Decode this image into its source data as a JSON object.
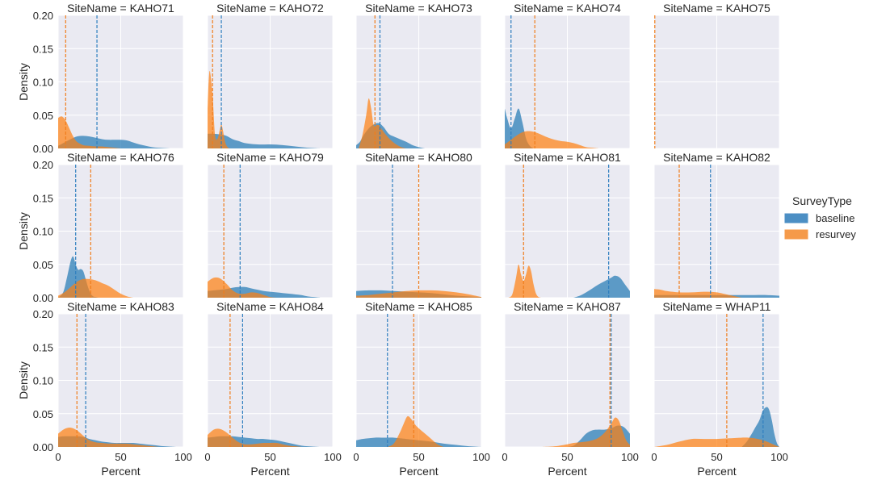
{
  "chart_data": {
    "type": "area",
    "subtype": "kde-facet-grid",
    "facet_var": "SiteName",
    "title_template": "SiteName = {}",
    "xlabel": "Percent",
    "ylabel": "Density",
    "xlim": [
      0,
      100
    ],
    "ylim": [
      0,
      0.2
    ],
    "xticks": [
      0,
      50,
      100
    ],
    "xtick_labels": [
      "0",
      "50",
      "100"
    ],
    "yticks": [
      0,
      0.05,
      0.1,
      0.15,
      0.2
    ],
    "ytick_labels": [
      "0.00",
      "0.05",
      "0.10",
      "0.15",
      "0.20"
    ],
    "grid": true,
    "legend": {
      "title": "SurveyType",
      "position": "right",
      "entries": [
        {
          "name": "baseline",
          "color": "#4c8fc4"
        },
        {
          "name": "resurvey",
          "color": "#f59a4a"
        }
      ]
    },
    "series_colors": {
      "baseline": "#1f77b4",
      "resurvey": "#ff7f0e"
    },
    "mean_line_style": "dashed",
    "panels": [
      {
        "site": "KAHO71",
        "baseline": {
          "mean": 31,
          "x": [
            0,
            5,
            10,
            15,
            20,
            25,
            30,
            35,
            40,
            45,
            50,
            55,
            60,
            65,
            70,
            75,
            80,
            85,
            90
          ],
          "y": [
            0.004,
            0.009,
            0.014,
            0.018,
            0.019,
            0.018,
            0.016,
            0.014,
            0.013,
            0.013,
            0.013,
            0.012,
            0.009,
            0.006,
            0.004,
            0.002,
            0.001,
            0.0005,
            0
          ]
        },
        "resurvey": {
          "mean": 6,
          "x": [
            0,
            3,
            6,
            9,
            12,
            15,
            20,
            25,
            30,
            35,
            40,
            45,
            50
          ],
          "y": [
            0.046,
            0.048,
            0.042,
            0.03,
            0.018,
            0.01,
            0.005,
            0.004,
            0.003,
            0.003,
            0.002,
            0.001,
            0
          ]
        }
      },
      {
        "site": "KAHO72",
        "baseline": {
          "mean": 11,
          "x": [
            0,
            5,
            10,
            15,
            20,
            25,
            30,
            40,
            50,
            60,
            70,
            80,
            90
          ],
          "y": [
            0.022,
            0.022,
            0.021,
            0.019,
            0.014,
            0.011,
            0.008,
            0.006,
            0.006,
            0.005,
            0.003,
            0.001,
            0
          ]
        },
        "resurvey": {
          "mean": 4,
          "x": [
            0,
            1,
            2,
            4,
            6,
            8,
            10,
            11,
            12,
            14,
            16,
            18
          ],
          "y": [
            0.06,
            0.105,
            0.115,
            0.08,
            0.02,
            0.015,
            0.03,
            0.036,
            0.03,
            0.01,
            0.002,
            0
          ]
        }
      },
      {
        "site": "KAHO73",
        "baseline": {
          "mean": 19,
          "x": [
            0,
            3,
            6,
            10,
            14,
            18,
            22,
            26,
            30,
            35,
            40,
            45,
            50,
            55
          ],
          "y": [
            0.005,
            0.01,
            0.02,
            0.03,
            0.036,
            0.038,
            0.032,
            0.022,
            0.018,
            0.014,
            0.01,
            0.005,
            0.002,
            0
          ]
        },
        "resurvey": {
          "mean": 15,
          "x": [
            2,
            5,
            8,
            10,
            12,
            14,
            16,
            18,
            20,
            24,
            28,
            32,
            36,
            40
          ],
          "y": [
            0,
            0.02,
            0.05,
            0.075,
            0.06,
            0.035,
            0.035,
            0.035,
            0.03,
            0.02,
            0.012,
            0.006,
            0.002,
            0
          ]
        }
      },
      {
        "site": "KAHO74",
        "baseline": {
          "mean": 5,
          "x": [
            0,
            2,
            5,
            8,
            11,
            14,
            17,
            20,
            23
          ],
          "y": [
            0.06,
            0.045,
            0.03,
            0.045,
            0.06,
            0.04,
            0.015,
            0.004,
            0
          ]
        },
        "resurvey": {
          "mean": 24,
          "x": [
            0,
            5,
            10,
            15,
            20,
            25,
            30,
            35,
            40,
            45,
            50,
            55,
            60,
            65,
            70,
            75
          ],
          "y": [
            0.006,
            0.013,
            0.02,
            0.025,
            0.026,
            0.024,
            0.02,
            0.016,
            0.013,
            0.011,
            0.01,
            0.008,
            0.005,
            0.002,
            0.001,
            0
          ]
        }
      },
      {
        "site": "KAHO75",
        "baseline": {
          "mean": null,
          "x": [],
          "y": []
        },
        "resurvey": {
          "mean": 0.5,
          "x": [],
          "y": []
        }
      },
      {
        "site": "KAHO76",
        "baseline": {
          "mean": 14,
          "x": [
            0,
            4,
            7,
            10,
            12,
            14,
            16,
            18,
            20,
            22,
            24,
            26,
            28,
            30,
            32
          ],
          "y": [
            0,
            0.008,
            0.03,
            0.055,
            0.062,
            0.05,
            0.042,
            0.043,
            0.04,
            0.028,
            0.015,
            0.006,
            0.002,
            0.001,
            0
          ]
        },
        "resurvey": {
          "mean": 26,
          "x": [
            0,
            5,
            10,
            15,
            20,
            25,
            30,
            35,
            40,
            45,
            50,
            55,
            60
          ],
          "y": [
            0.003,
            0.008,
            0.016,
            0.024,
            0.028,
            0.028,
            0.026,
            0.022,
            0.018,
            0.012,
            0.006,
            0.002,
            0
          ]
        }
      },
      {
        "site": "KAHO79",
        "baseline": {
          "mean": 26,
          "x": [
            0,
            5,
            10,
            15,
            20,
            25,
            30,
            35,
            40,
            45,
            50,
            55,
            60,
            65,
            70,
            75,
            80,
            85,
            90
          ],
          "y": [
            0.01,
            0.011,
            0.012,
            0.013,
            0.015,
            0.016,
            0.016,
            0.014,
            0.012,
            0.01,
            0.009,
            0.008,
            0.007,
            0.006,
            0.005,
            0.004,
            0.002,
            0.001,
            0
          ]
        },
        "resurvey": {
          "mean": 13,
          "x": [
            0,
            5,
            10,
            15,
            20,
            25,
            30,
            35,
            40,
            45,
            50,
            55
          ],
          "y": [
            0.024,
            0.03,
            0.029,
            0.021,
            0.011,
            0.006,
            0.006,
            0.008,
            0.007,
            0.004,
            0.001,
            0
          ]
        }
      },
      {
        "site": "KAHO80",
        "baseline": {
          "mean": 29,
          "x": [
            0,
            10,
            20,
            30,
            40,
            50,
            60,
            70,
            80,
            90,
            100
          ],
          "y": [
            0.01,
            0.011,
            0.011,
            0.01,
            0.009,
            0.008,
            0.007,
            0.005,
            0.003,
            0.002,
            0.001
          ]
        },
        "resurvey": {
          "mean": 50,
          "x": [
            0,
            10,
            20,
            30,
            40,
            50,
            60,
            70,
            80,
            90,
            100
          ],
          "y": [
            0.003,
            0.004,
            0.006,
            0.008,
            0.01,
            0.011,
            0.011,
            0.01,
            0.008,
            0.005,
            0.001
          ]
        }
      },
      {
        "site": "KAHO81",
        "baseline": {
          "mean": 83,
          "x": [
            55,
            60,
            65,
            70,
            75,
            80,
            85,
            88,
            92,
            96,
            100
          ],
          "y": [
            0,
            0.003,
            0.008,
            0.014,
            0.02,
            0.025,
            0.03,
            0.033,
            0.03,
            0.02,
            0.01
          ]
        },
        "resurvey": {
          "mean": 15,
          "x": [
            3,
            6,
            9,
            11,
            13,
            15,
            17,
            19,
            21,
            23,
            25,
            27,
            29
          ],
          "y": [
            0,
            0.005,
            0.03,
            0.05,
            0.035,
            0.025,
            0.035,
            0.048,
            0.04,
            0.02,
            0.006,
            0.001,
            0
          ]
        }
      },
      {
        "site": "KAHO82",
        "baseline": {
          "mean": 45,
          "x": [
            0,
            10,
            20,
            30,
            40,
            50,
            60,
            70,
            80,
            90,
            100
          ],
          "y": [
            0.004,
            0.004,
            0.004,
            0.004,
            0.004,
            0.004,
            0.004,
            0.004,
            0.004,
            0.004,
            0.003
          ]
        },
        "resurvey": {
          "mean": 20,
          "x": [
            0,
            5,
            10,
            20,
            30,
            40,
            50,
            60,
            70
          ],
          "y": [
            0.013,
            0.012,
            0.01,
            0.008,
            0.008,
            0.009,
            0.008,
            0.004,
            0
          ]
        }
      },
      {
        "site": "KAHO83",
        "baseline": {
          "mean": 22,
          "x": [
            0,
            5,
            10,
            15,
            20,
            25,
            30,
            35,
            40,
            45,
            50,
            55,
            60,
            65,
            70,
            75,
            80,
            85,
            90,
            95
          ],
          "y": [
            0.015,
            0.016,
            0.016,
            0.016,
            0.015,
            0.012,
            0.01,
            0.008,
            0.007,
            0.006,
            0.006,
            0.006,
            0.006,
            0.005,
            0.004,
            0.003,
            0.002,
            0.001,
            0.0005,
            0
          ]
        },
        "resurvey": {
          "mean": 15,
          "x": [
            0,
            5,
            10,
            15,
            20,
            25,
            30,
            35,
            40,
            45,
            50,
            55,
            60,
            65,
            70,
            75,
            80
          ],
          "y": [
            0.02,
            0.027,
            0.029,
            0.025,
            0.017,
            0.01,
            0.007,
            0.006,
            0.005,
            0.005,
            0.005,
            0.005,
            0.004,
            0.003,
            0.002,
            0.001,
            0
          ]
        }
      },
      {
        "site": "KAHO84",
        "baseline": {
          "mean": 28,
          "x": [
            0,
            5,
            10,
            15,
            20,
            25,
            30,
            35,
            40,
            45,
            50,
            55,
            60,
            65,
            70,
            75,
            80,
            85,
            90
          ],
          "y": [
            0.014,
            0.015,
            0.016,
            0.016,
            0.016,
            0.015,
            0.014,
            0.013,
            0.012,
            0.012,
            0.011,
            0.01,
            0.008,
            0.006,
            0.004,
            0.002,
            0.001,
            0.0005,
            0
          ]
        },
        "resurvey": {
          "mean": 18,
          "x": [
            0,
            5,
            10,
            15,
            20,
            25,
            30,
            35,
            40,
            45,
            50,
            55,
            60,
            65,
            70,
            75
          ],
          "y": [
            0.018,
            0.026,
            0.027,
            0.022,
            0.014,
            0.007,
            0.004,
            0.004,
            0.005,
            0.006,
            0.006,
            0.006,
            0.004,
            0.002,
            0.001,
            0
          ]
        }
      },
      {
        "site": "KAHO85",
        "baseline": {
          "mean": 25,
          "x": [
            0,
            5,
            10,
            15,
            20,
            25,
            30,
            35,
            40,
            50,
            60,
            70,
            80,
            90,
            100
          ],
          "y": [
            0.01,
            0.012,
            0.013,
            0.014,
            0.014,
            0.014,
            0.014,
            0.013,
            0.012,
            0.01,
            0.008,
            0.005,
            0.003,
            0.001,
            0
          ]
        },
        "resurvey": {
          "mean": 46,
          "x": [
            25,
            30,
            35,
            38,
            41,
            44,
            47,
            50,
            55,
            60,
            65,
            70
          ],
          "y": [
            0,
            0.005,
            0.022,
            0.035,
            0.046,
            0.042,
            0.034,
            0.028,
            0.02,
            0.012,
            0.004,
            0
          ]
        }
      },
      {
        "site": "KAHO87",
        "baseline": {
          "mean": 85,
          "x": [
            50,
            55,
            60,
            65,
            70,
            75,
            80,
            85,
            90,
            95,
            100
          ],
          "y": [
            0,
            0.002,
            0.01,
            0.02,
            0.025,
            0.026,
            0.026,
            0.028,
            0.032,
            0.03,
            0.02
          ]
        },
        "resurvey": {
          "mean": 84,
          "x": [
            30,
            40,
            50,
            55,
            60,
            65,
            70,
            75,
            80,
            85,
            88,
            91,
            94,
            97,
            100
          ],
          "y": [
            0,
            0.001,
            0.004,
            0.006,
            0.007,
            0.008,
            0.01,
            0.014,
            0.022,
            0.035,
            0.044,
            0.04,
            0.025,
            0.01,
            0.003
          ]
        }
      },
      {
        "site": "WHAP11",
        "baseline": {
          "mean": 87,
          "x": [
            70,
            74,
            78,
            81,
            84,
            87,
            90,
            92,
            94,
            96,
            98,
            100
          ],
          "y": [
            0,
            0.008,
            0.02,
            0.03,
            0.04,
            0.055,
            0.06,
            0.055,
            0.04,
            0.02,
            0.006,
            0
          ]
        },
        "resurvey": {
          "mean": 58,
          "x": [
            0,
            10,
            20,
            30,
            40,
            50,
            60,
            70,
            75,
            80,
            85,
            90,
            95,
            100
          ],
          "y": [
            0,
            0.003,
            0.008,
            0.012,
            0.012,
            0.012,
            0.013,
            0.014,
            0.014,
            0.013,
            0.011,
            0.008,
            0.004,
            0
          ]
        }
      }
    ]
  }
}
